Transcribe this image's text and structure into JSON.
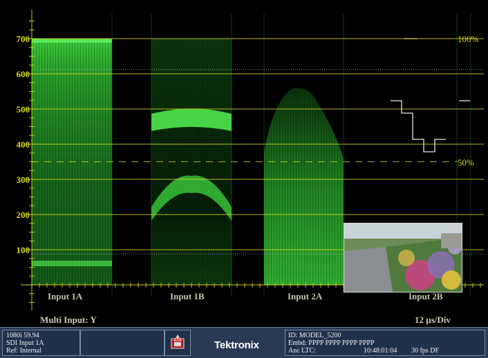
{
  "scale": {
    "ticks": [
      {
        "label": "700",
        "value": 700
      },
      {
        "label": "600",
        "value": 600
      },
      {
        "label": "500",
        "value": 500
      },
      {
        "label": "400",
        "value": 400
      },
      {
        "label": "300",
        "value": 300
      },
      {
        "label": "200",
        "value": 200
      },
      {
        "label": "100",
        "value": 100
      }
    ],
    "pct_100": "100%",
    "pct_50": "50%"
  },
  "inputs": [
    "Input 1A",
    "Input 1B",
    "Input 2A",
    "Input 2B"
  ],
  "footer": {
    "mode": "Multi Input: Y",
    "sweep": "12 µs/Div"
  },
  "status": {
    "format": "1080i 59.94",
    "input": "SDI Input 1A",
    "ref": "Ref: Internal",
    "alarm_icon": "alarm-icon",
    "brand": "Tektronix",
    "id": "ID: MODEL_5200",
    "embd": "Embd: PPPP PPPP PPPP PPPP",
    "anc_label": "Anc LTC:",
    "anc_time": "10:48:01:04",
    "fps": "30 fps DF"
  },
  "colors": {
    "graticule": "#d8d818",
    "trace": "#3ed83e",
    "statusbar": "#2b3a54"
  }
}
